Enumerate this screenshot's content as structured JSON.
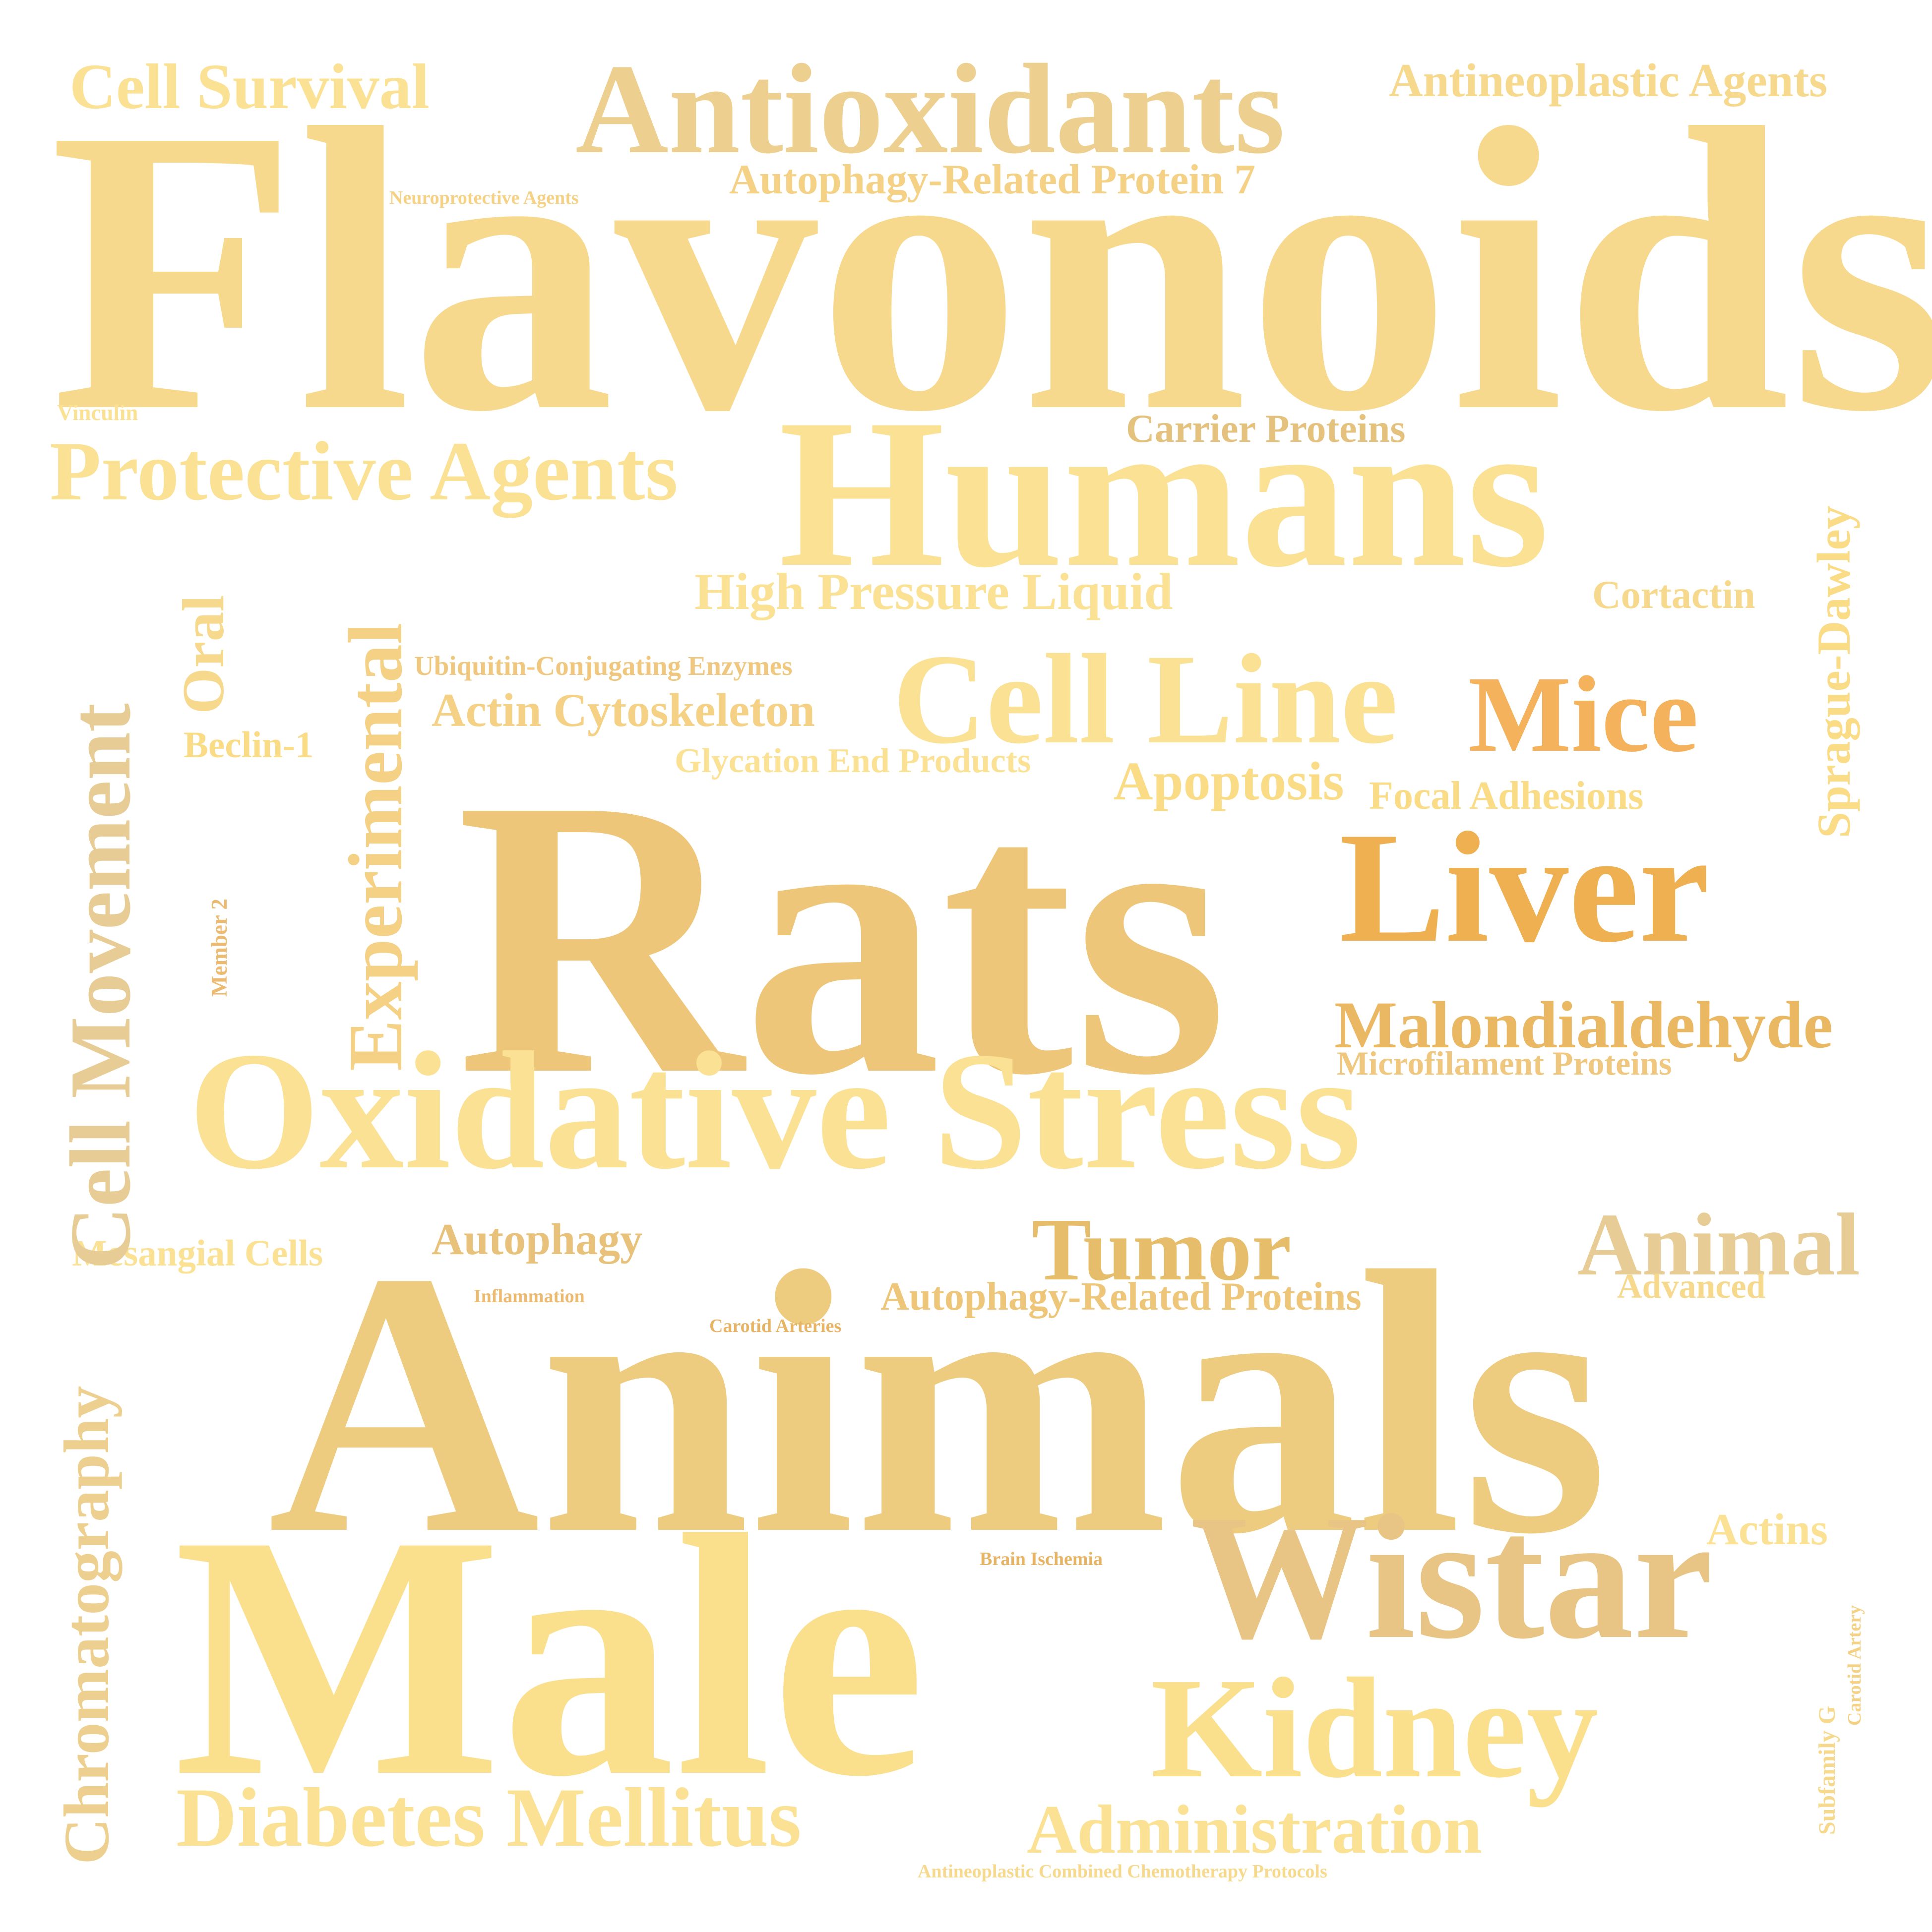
{
  "words": [
    {
      "text": "Flavonoids",
      "color": "#F7D98E"
    },
    {
      "text": "Animals",
      "color": "#EDCB7F"
    },
    {
      "text": "Rats",
      "color": "#EEC679"
    },
    {
      "text": "Male",
      "color": "#FADF8C"
    },
    {
      "text": "Humans",
      "color": "#FBE194"
    },
    {
      "text": "Oxidative Stress",
      "color": "#FBE194"
    },
    {
      "text": "Antioxidants",
      "color": "#EDD08F"
    },
    {
      "text": "Wistar",
      "color": "#E8C584"
    },
    {
      "text": "Liver",
      "color": "#EEB050"
    },
    {
      "text": "Kidney",
      "color": "#FADF8C"
    },
    {
      "text": "Cell Line",
      "color": "#FBE194"
    },
    {
      "text": "Mice",
      "color": "#F4B25D"
    },
    {
      "text": "Animal",
      "color": "#E7CD95"
    },
    {
      "text": "Tumor",
      "color": "#E6BD6A"
    },
    {
      "text": "Malondialdehyde",
      "color": "#EAB763"
    },
    {
      "text": "Protective Agents",
      "color": "#FBE194"
    },
    {
      "text": "Diabetes Mellitus",
      "color": "#FBE194"
    },
    {
      "text": "Administration",
      "color": "#FBE194"
    },
    {
      "text": "Cell Survival",
      "color": "#FBE194"
    },
    {
      "text": "High Pressure Liquid",
      "color": "#FBE194"
    },
    {
      "text": "Apoptosis",
      "color": "#FADB86"
    },
    {
      "text": "Actin Cytoskeleton",
      "color": "#F4D184"
    },
    {
      "text": "Antineoplastic Agents",
      "color": "#F7D98E"
    },
    {
      "text": "Autophagy-Related Protein 7",
      "color": "#F4D184"
    },
    {
      "text": "Carrier Proteins",
      "color": "#E4C27E"
    },
    {
      "text": "Cortactin",
      "color": "#F7D98E"
    },
    {
      "text": "Focal Adhesions",
      "color": "#FADB86"
    },
    {
      "text": "Microfilament Proteins",
      "color": "#F0C77E"
    },
    {
      "text": "Autophagy",
      "color": "#E8C17A"
    },
    {
      "text": "Autophagy-Related Proteins",
      "color": "#EEC679"
    },
    {
      "text": "Advanced",
      "color": "#F7D98E"
    },
    {
      "text": "Actins",
      "color": "#FBE194"
    },
    {
      "text": "Glycation End Products",
      "color": "#FBE194"
    },
    {
      "text": "Beclin-1",
      "color": "#FADB86"
    },
    {
      "text": "Mesangial Cells",
      "color": "#FBE194"
    },
    {
      "text": "Ubiquitin-Conjugating Enzymes",
      "color": "#F0C77E"
    },
    {
      "text": "Vinculin",
      "color": "#FBE194"
    },
    {
      "text": "Neuroprotective Agents",
      "color": "#F4D184"
    },
    {
      "text": "Inflammation",
      "color": "#ECBA70"
    },
    {
      "text": "Carotid Arteries",
      "color": "#E7B466"
    },
    {
      "text": "Brain Ischemia",
      "color": "#E7B466"
    },
    {
      "text": "Antineoplastic Combined Chemotherapy Protocols",
      "color": "#F7D98E"
    },
    {
      "text": "Cell Movement",
      "color": "#E7CD95"
    },
    {
      "text": "Chromatography",
      "color": "#EDD08F"
    },
    {
      "text": "Experimental",
      "color": "#F4D184"
    },
    {
      "text": "Oral",
      "color": "#F7D98E"
    },
    {
      "text": "Sprague-Dawley",
      "color": "#FADB86"
    },
    {
      "text": "Member 2",
      "color": "#ECBA70"
    },
    {
      "text": "Subfamily G",
      "color": "#F7D98E"
    },
    {
      "text": "Carotid Artery",
      "color": "#F4D184"
    }
  ]
}
